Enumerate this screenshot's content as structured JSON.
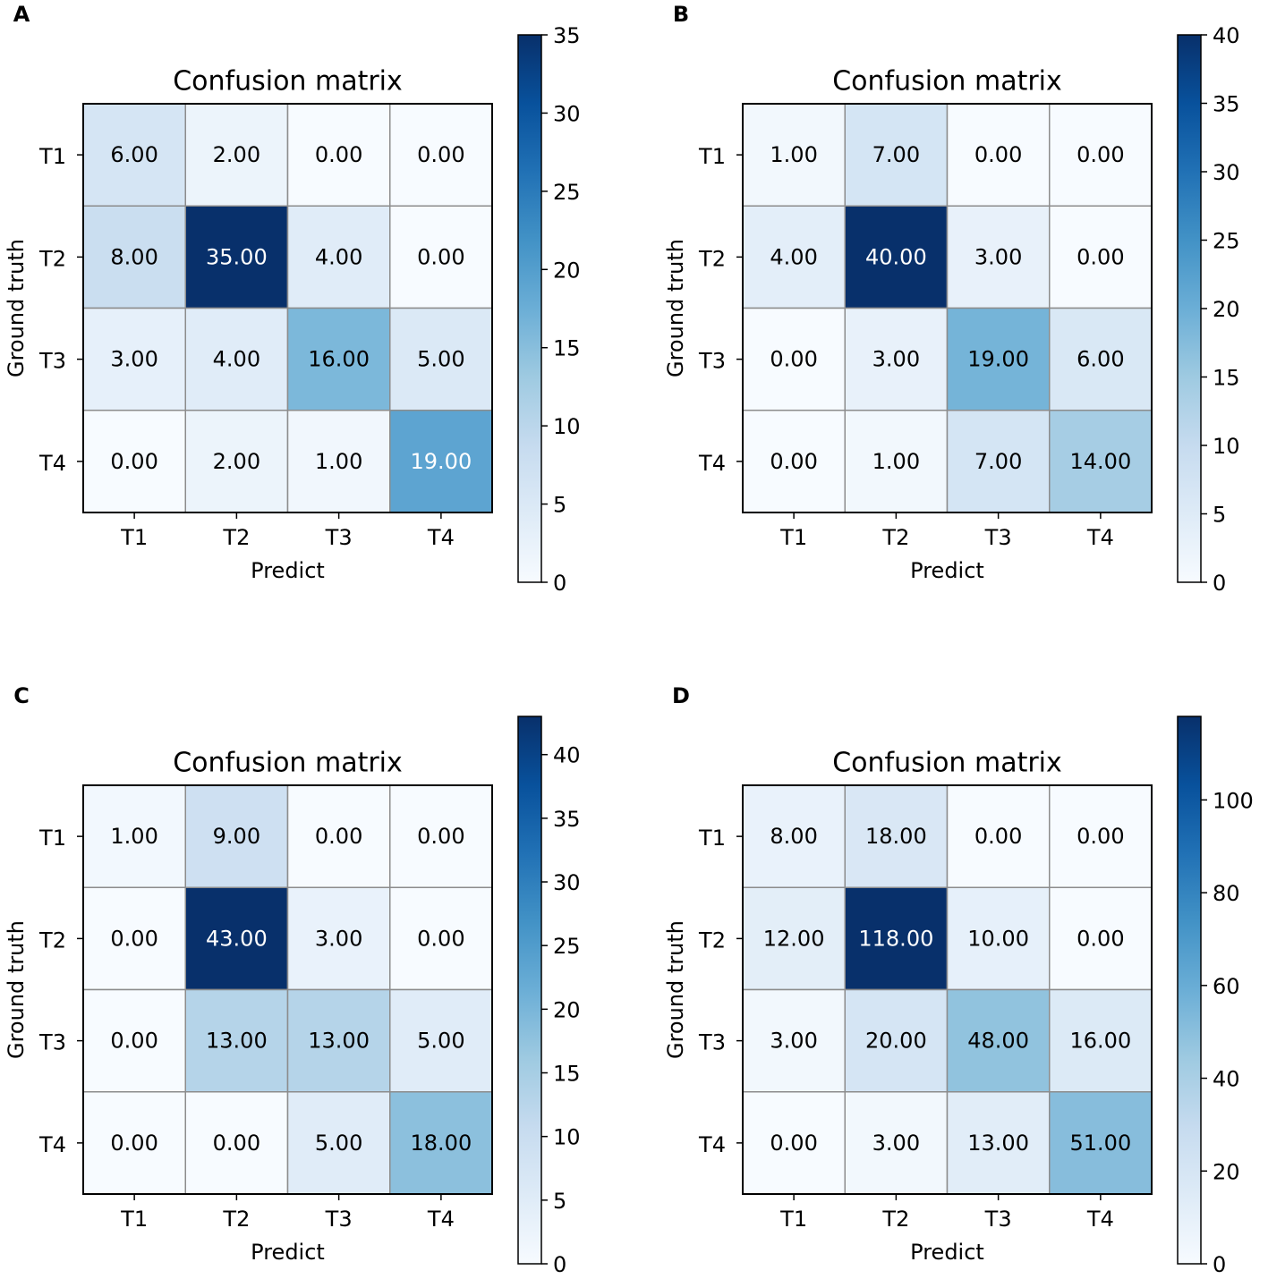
{
  "chart_data": [
    {
      "type": "heatmap",
      "panel_label": "A",
      "title": "Confusion matrix",
      "xlabel": "Predict",
      "ylabel": "Ground truth",
      "x_categories": [
        "T1",
        "T2",
        "T3",
        "T4"
      ],
      "y_categories": [
        "T1",
        "T2",
        "T3",
        "T4"
      ],
      "values": [
        [
          6,
          2,
          0,
          0
        ],
        [
          8,
          35,
          4,
          0
        ],
        [
          3,
          4,
          16,
          5
        ],
        [
          0,
          2,
          1,
          19
        ]
      ],
      "cell_labels": [
        [
          "6.00",
          "2.00",
          "0.00",
          "0.00"
        ],
        [
          "8.00",
          "35.00",
          "4.00",
          "0.00"
        ],
        [
          "3.00",
          "4.00",
          "16.00",
          "5.00"
        ],
        [
          "0.00",
          "2.00",
          "1.00",
          "19.00"
        ]
      ],
      "colorbar": {
        "range": [
          0,
          35
        ],
        "ticks": [
          0,
          5,
          10,
          15,
          20,
          25,
          30,
          35
        ]
      },
      "colormap": "Blues"
    },
    {
      "type": "heatmap",
      "panel_label": "B",
      "title": "Confusion matrix",
      "xlabel": "Predict",
      "ylabel": "Ground truth",
      "x_categories": [
        "T1",
        "T2",
        "T3",
        "T4"
      ],
      "y_categories": [
        "T1",
        "T2",
        "T3",
        "T4"
      ],
      "values": [
        [
          1,
          7,
          0,
          0
        ],
        [
          4,
          40,
          3,
          0
        ],
        [
          0,
          3,
          19,
          6
        ],
        [
          0,
          1,
          7,
          14
        ]
      ],
      "cell_labels": [
        [
          "1.00",
          "7.00",
          "0.00",
          "0.00"
        ],
        [
          "4.00",
          "40.00",
          "3.00",
          "0.00"
        ],
        [
          "0.00",
          "3.00",
          "19.00",
          "6.00"
        ],
        [
          "0.00",
          "1.00",
          "7.00",
          "14.00"
        ]
      ],
      "colorbar": {
        "range": [
          0,
          40
        ],
        "ticks": [
          0,
          5,
          10,
          15,
          20,
          25,
          30,
          35,
          40
        ]
      },
      "colormap": "Blues"
    },
    {
      "type": "heatmap",
      "panel_label": "C",
      "title": "Confusion matrix",
      "xlabel": "Predict",
      "ylabel": "Ground truth",
      "x_categories": [
        "T1",
        "T2",
        "T3",
        "T4"
      ],
      "y_categories": [
        "T1",
        "T2",
        "T3",
        "T4"
      ],
      "values": [
        [
          1,
          9,
          0,
          0
        ],
        [
          0,
          43,
          3,
          0
        ],
        [
          0,
          13,
          13,
          5
        ],
        [
          0,
          0,
          5,
          18
        ]
      ],
      "cell_labels": [
        [
          "1.00",
          "9.00",
          "0.00",
          "0.00"
        ],
        [
          "0.00",
          "43.00",
          "3.00",
          "0.00"
        ],
        [
          "0.00",
          "13.00",
          "13.00",
          "5.00"
        ],
        [
          "0.00",
          "0.00",
          "5.00",
          "18.00"
        ]
      ],
      "colorbar": {
        "range": [
          0,
          43
        ],
        "ticks": [
          0,
          5,
          10,
          15,
          20,
          25,
          30,
          35,
          40
        ]
      },
      "colormap": "Blues"
    },
    {
      "type": "heatmap",
      "panel_label": "D",
      "title": "Confusion matrix",
      "xlabel": "Predict",
      "ylabel": "Ground truth",
      "x_categories": [
        "T1",
        "T2",
        "T3",
        "T4"
      ],
      "y_categories": [
        "T1",
        "T2",
        "T3",
        "T4"
      ],
      "values": [
        [
          8,
          18,
          0,
          0
        ],
        [
          12,
          118,
          10,
          0
        ],
        [
          3,
          20,
          48,
          16
        ],
        [
          0,
          3,
          13,
          51
        ]
      ],
      "cell_labels": [
        [
          "8.00",
          "18.00",
          "0.00",
          "0.00"
        ],
        [
          "12.00",
          "118.00",
          "10.00",
          "0.00"
        ],
        [
          "3.00",
          "20.00",
          "48.00",
          "16.00"
        ],
        [
          "0.00",
          "3.00",
          "13.00",
          "51.00"
        ]
      ],
      "colorbar": {
        "range": [
          0,
          118
        ],
        "ticks": [
          0,
          20,
          40,
          60,
          80,
          100
        ]
      },
      "colormap": "Blues"
    }
  ]
}
